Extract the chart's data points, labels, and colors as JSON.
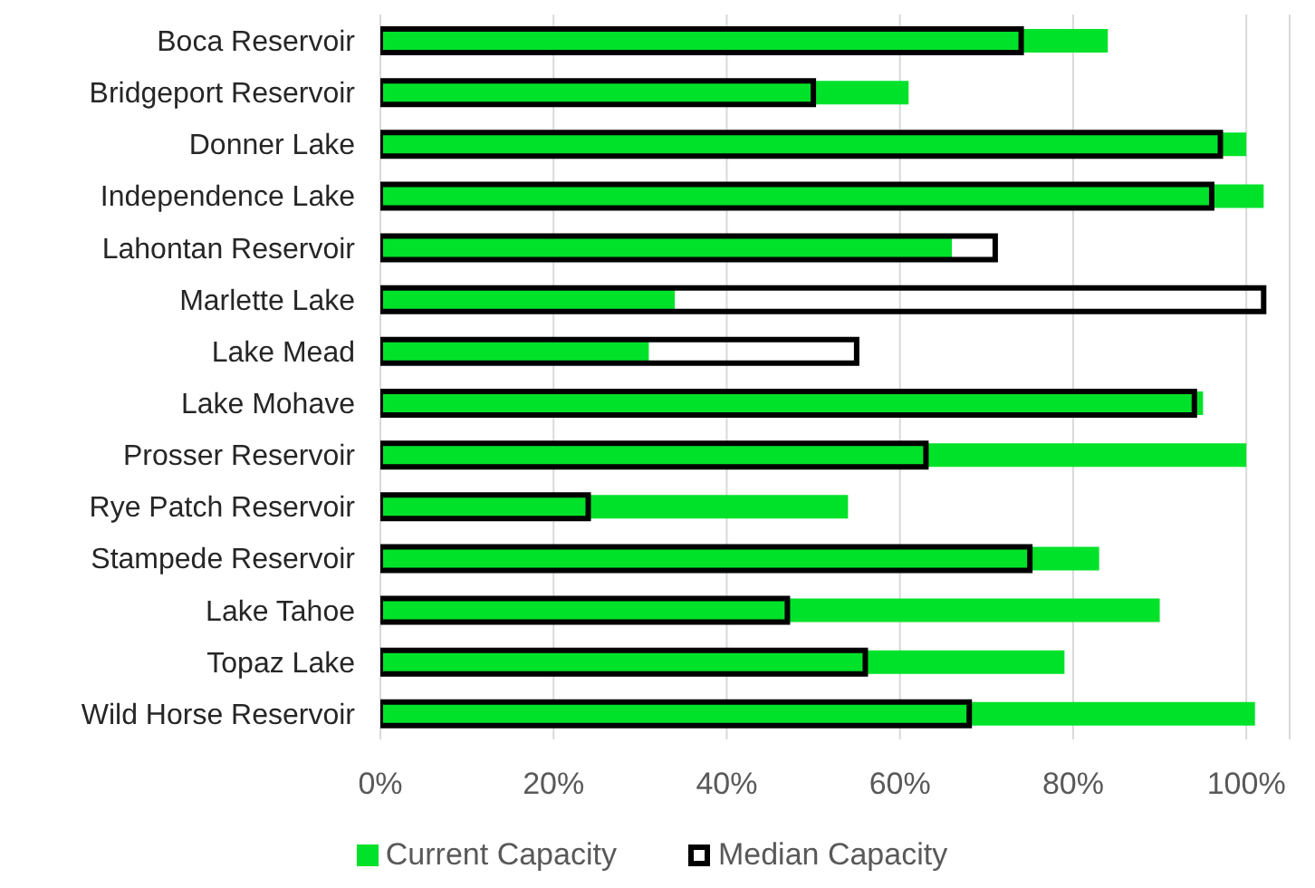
{
  "chart_data": {
    "type": "bar",
    "orientation": "horizontal",
    "categories": [
      "Boca Reservoir",
      "Bridgeport Reservoir",
      "Donner Lake",
      "Independence Lake",
      "Lahontan Reservoir",
      "Marlette Lake",
      "Lake Mead",
      "Lake Mohave",
      "Prosser Reservoir",
      "Rye Patch Reservoir",
      "Stampede Reservoir",
      "Lake Tahoe",
      "Topaz Lake",
      "Wild Horse Reservoir"
    ],
    "series": [
      {
        "name": "Current Capacity",
        "color": "#00e22a",
        "values": [
          84,
          61,
          100,
          102,
          66,
          34,
          31,
          95,
          100,
          54,
          83,
          90,
          79,
          101
        ]
      },
      {
        "name": "Median Capacity",
        "color": "#000000",
        "values": [
          74,
          50,
          97,
          96,
          71,
          102,
          55,
          94,
          63,
          24,
          75,
          47,
          56,
          68
        ]
      }
    ],
    "xlim": [
      0,
      105
    ],
    "xticks": [
      {
        "value": 0,
        "label": "0%"
      },
      {
        "value": 20,
        "label": "20%"
      },
      {
        "value": 40,
        "label": "40%"
      },
      {
        "value": 60,
        "label": "60%"
      },
      {
        "value": 80,
        "label": "80%"
      },
      {
        "value": 100,
        "label": "100%"
      }
    ],
    "grid": "x",
    "legend": "bottom"
  }
}
